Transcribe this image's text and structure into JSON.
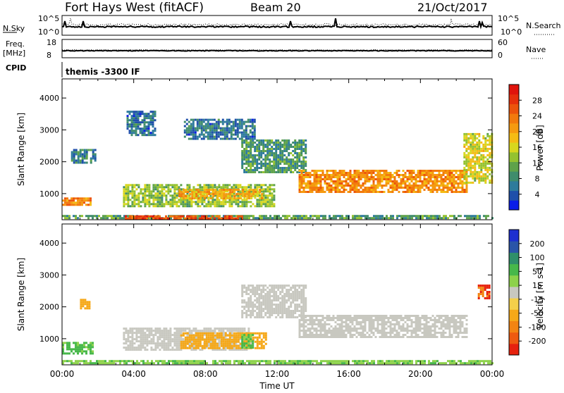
{
  "header": {
    "station": "Fort Hays West (fitACF)",
    "beam": "Beam 20",
    "date": "21/Oct/2017"
  },
  "strips": {
    "nsky_label": "N.Sky",
    "nsky_ticks": [
      "10^5",
      "10^0"
    ],
    "nsearch_label": "N.Search",
    "freq_label_1": "Freq.",
    "freq_label_2": "[MHz]",
    "freq_ticks": [
      "18",
      "8"
    ],
    "nave_label": "Nave",
    "nave_ticks": [
      "60",
      "0"
    ],
    "cpid_label": "CPID",
    "cpid_text": "themis -3300 IF"
  },
  "chart_data": [
    {
      "type": "heatmap",
      "panel": "power",
      "ylabel": "Slant Range [km]",
      "xlabel": "Time UT",
      "xlim": [
        "00:00",
        "24:00"
      ],
      "ylim": [
        180,
        4600
      ],
      "y_ticks": [
        "1000",
        "2000",
        "3000",
        "4000"
      ],
      "x_ticks": [
        "00:00",
        "04:00",
        "08:00",
        "12:00",
        "16:00",
        "20:00",
        "00:00"
      ],
      "colorbar": {
        "label": "Power [dB]",
        "ticks": [
          "4",
          "8",
          "12",
          "16",
          "20",
          "24",
          "28"
        ],
        "range": [
          0,
          30
        ],
        "colors": [
          "#0a1de8",
          "#1f4faa",
          "#2e7b9c",
          "#3f8c6c",
          "#5ea24a",
          "#94c230",
          "#d8d71e",
          "#f4bb14",
          "#f59a10",
          "#f27a0d",
          "#ec540c",
          "#e6300c",
          "#e0140c"
        ]
      },
      "regions": [
        {
          "t0": 0.0,
          "t1": 1.6,
          "r0": 620,
          "r1": 880,
          "level": 22
        },
        {
          "t0": 0.5,
          "t1": 1.9,
          "r0": 1950,
          "r1": 2400,
          "level": 6
        },
        {
          "t0": 3.4,
          "t1": 11.8,
          "r0": 600,
          "r1": 1300,
          "level": 12
        },
        {
          "t0": 6.5,
          "t1": 11.2,
          "r0": 850,
          "r1": 1150,
          "level": 19
        },
        {
          "t0": 0.0,
          "t1": 24.0,
          "r0": 200,
          "r1": 330,
          "level": 9
        },
        {
          "t0": 3.5,
          "t1": 10.0,
          "r0": 240,
          "r1": 320,
          "level": 26
        },
        {
          "t0": 3.6,
          "t1": 5.2,
          "r0": 2850,
          "r1": 3600,
          "level": 5
        },
        {
          "t0": 6.8,
          "t1": 10.8,
          "r0": 2750,
          "r1": 3350,
          "level": 5
        },
        {
          "t0": 10.0,
          "t1": 13.6,
          "r0": 1700,
          "r1": 2700,
          "level": 8
        },
        {
          "t0": 13.2,
          "t1": 22.6,
          "r0": 1050,
          "r1": 1750,
          "level": 21
        },
        {
          "t0": 22.4,
          "t1": 24.0,
          "r0": 1350,
          "r1": 2900,
          "level": 15
        }
      ]
    },
    {
      "type": "heatmap",
      "panel": "velocity",
      "ylabel": "Slant Range [km]",
      "xlabel": "Time UT",
      "xlim": [
        "00:00",
        "24:00"
      ],
      "ylim": [
        180,
        4600
      ],
      "y_ticks": [
        "1000",
        "2000",
        "3000",
        "4000"
      ],
      "x_ticks": [
        "00:00",
        "04:00",
        "08:00",
        "12:00",
        "16:00",
        "20:00",
        "00:00"
      ],
      "colorbar": {
        "label": "Velocity [m s-1]",
        "ticks": [
          "200",
          "100",
          "50",
          "15",
          "-15",
          "-50",
          "-100",
          "-200"
        ],
        "colors": [
          "#1d2fd0",
          "#2a55a8",
          "#2f8f6a",
          "#47b84a",
          "#8dd24a",
          "#c8c8c0",
          "#f4d04a",
          "#f6a818",
          "#f38412",
          "#ee5a10",
          "#e6220e"
        ]
      },
      "regions": [
        {
          "t0": 0.0,
          "t1": 1.7,
          "r0": 540,
          "r1": 900,
          "v": 40
        },
        {
          "t0": 1.0,
          "t1": 1.5,
          "r0": 1950,
          "r1": 2250,
          "v": -60
        },
        {
          "t0": 3.4,
          "t1": 10.5,
          "r0": 650,
          "r1": 1350,
          "v": 0
        },
        {
          "t0": 6.6,
          "t1": 11.4,
          "r0": 700,
          "r1": 1200,
          "v": -60
        },
        {
          "t0": 10.0,
          "t1": 10.6,
          "r0": 750,
          "r1": 1150,
          "v": 40
        },
        {
          "t0": 10.0,
          "t1": 13.6,
          "r0": 1700,
          "r1": 2700,
          "v": 0
        },
        {
          "t0": 13.2,
          "t1": 22.6,
          "r0": 1050,
          "r1": 1750,
          "v": 0
        },
        {
          "t0": 0.0,
          "t1": 24.0,
          "r0": 200,
          "r1": 330,
          "v": 30
        },
        {
          "t0": 23.2,
          "t1": 23.9,
          "r0": 2300,
          "r1": 2700,
          "v": -150
        }
      ]
    }
  ]
}
